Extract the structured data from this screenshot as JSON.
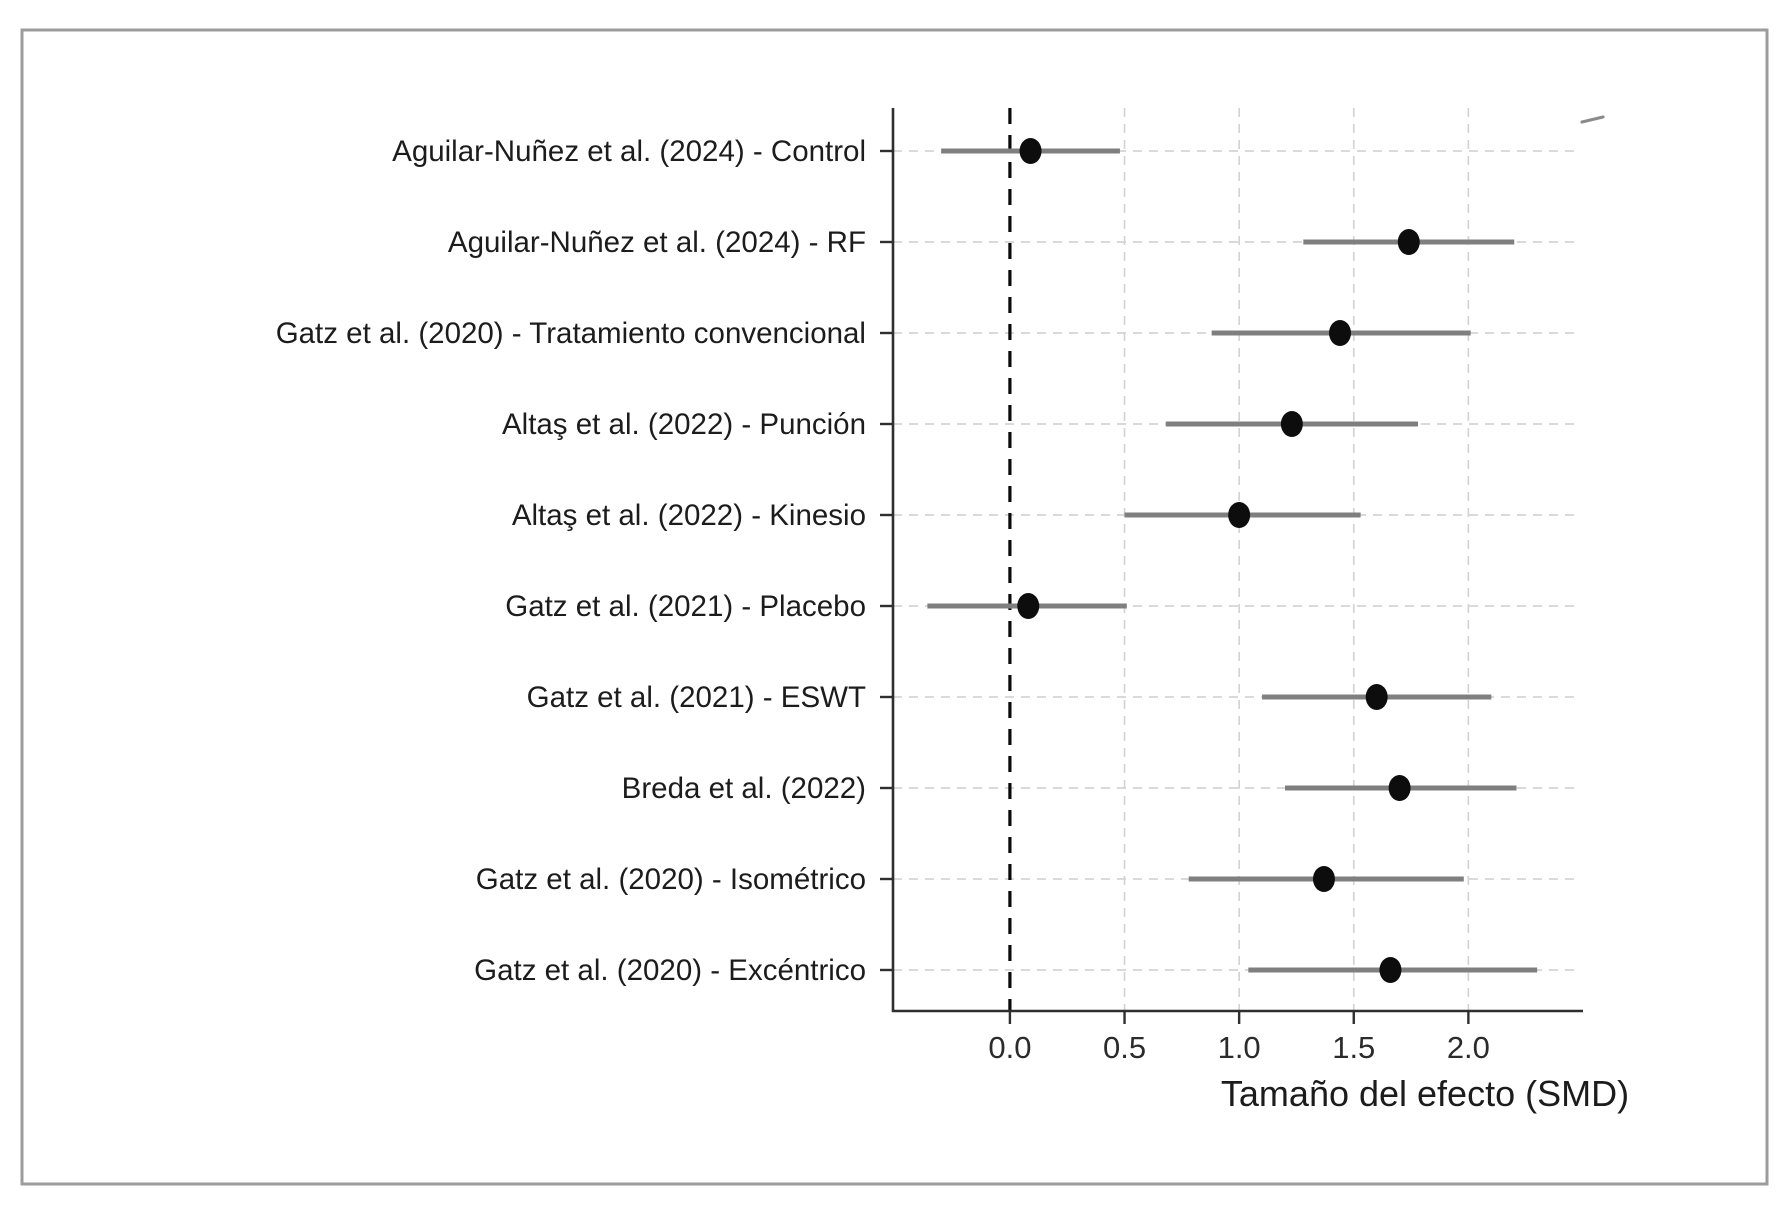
{
  "chart_data": {
    "type": "scatter",
    "variant": "forest_plot",
    "title": "",
    "xlabel": "Tamaño del efecto (SMD)",
    "ylabel": "",
    "x_ticks": [
      0.0,
      0.5,
      1.0,
      1.5,
      2.0
    ],
    "x_tick_labels": [
      "0.0",
      "0.5",
      "1.0",
      "1.5",
      "2.0"
    ],
    "xlim": [
      -0.51,
      2.5
    ],
    "reference_line_x": 0,
    "grid": true,
    "legend": "none",
    "studies": [
      {
        "label": "Aguilar-Nuñez et al. (2024) - Control",
        "estimate": 0.09,
        "ci_lower": -0.3,
        "ci_upper": 0.48
      },
      {
        "label": "Aguilar-Nuñez et al. (2024) - RF",
        "estimate": 1.74,
        "ci_lower": 1.28,
        "ci_upper": 2.2
      },
      {
        "label": "Gatz et al. (2020) - Tratamiento convencional",
        "estimate": 1.44,
        "ci_lower": 0.88,
        "ci_upper": 2.01
      },
      {
        "label": "Altaş et al. (2022) - Punción",
        "estimate": 1.23,
        "ci_lower": 0.68,
        "ci_upper": 1.78
      },
      {
        "label": "Altaş et al. (2022) - Kinesio",
        "estimate": 1.0,
        "ci_lower": 0.5,
        "ci_upper": 1.53
      },
      {
        "label": "Gatz et al. (2021) - Placebo",
        "estimate": 0.08,
        "ci_lower": -0.36,
        "ci_upper": 0.51
      },
      {
        "label": "Gatz et al. (2021) - ESWT",
        "estimate": 1.6,
        "ci_lower": 1.1,
        "ci_upper": 2.1
      },
      {
        "label": "Breda et al. (2022)",
        "estimate": 1.7,
        "ci_lower": 1.2,
        "ci_upper": 2.21
      },
      {
        "label": "Gatz et al. (2020) - Isométrico",
        "estimate": 1.37,
        "ci_lower": 0.78,
        "ci_upper": 1.98
      },
      {
        "label": "Gatz et al. (2020) - Excéntrico",
        "estimate": 1.66,
        "ci_lower": 1.04,
        "ci_upper": 2.3
      }
    ],
    "colors": {
      "point": "#0d0d0d",
      "ci_line": "#7f7f7f",
      "grid": "#d4d4d4",
      "zero_line": "#0a0a0a",
      "spine": "#2f2f2f",
      "tick": "#2f2f2f",
      "label_text": "#1c1c1c",
      "tick_text": "#2b2b2b",
      "frame_border": "#9c9c9c",
      "background": "#ffffff",
      "artifact": "#8a8a8a"
    }
  }
}
